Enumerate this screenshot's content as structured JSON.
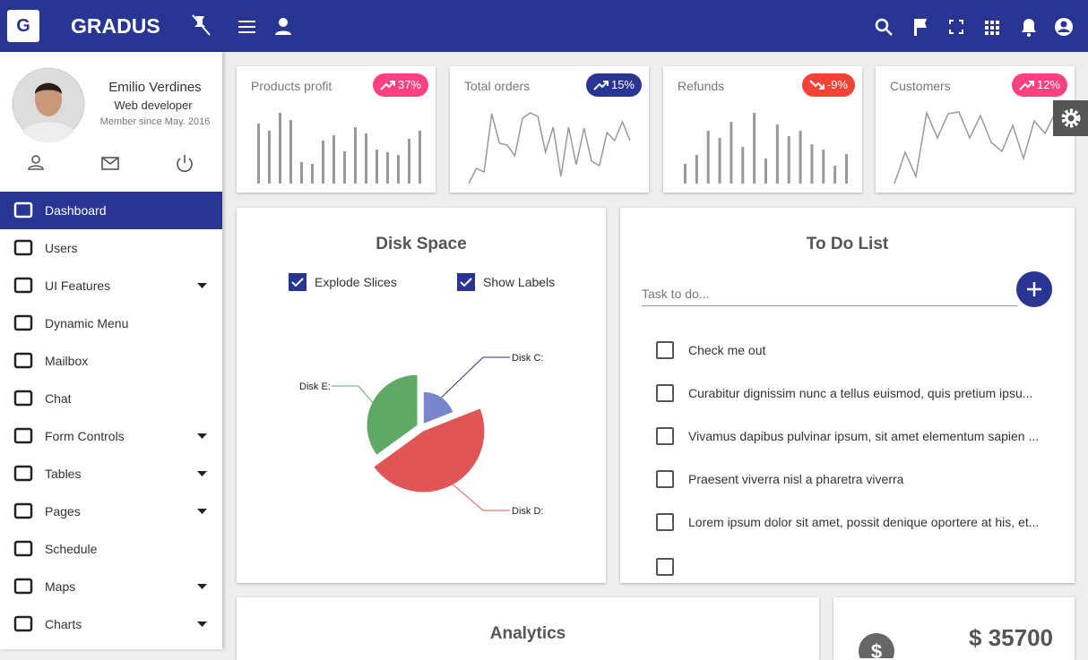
{
  "header": {
    "logo": "G",
    "brand": "GRADUS"
  },
  "profile": {
    "name": "Emilio Verdines",
    "role": "Web developer",
    "member_since": "Member since May. 2016"
  },
  "nav": [
    {
      "label": "Dashboard",
      "active": true
    },
    {
      "label": "Users"
    },
    {
      "label": "UI Features",
      "submenu": true
    },
    {
      "label": "Dynamic Menu"
    },
    {
      "label": "Mailbox"
    },
    {
      "label": "Chat"
    },
    {
      "label": "Form Controls",
      "submenu": true
    },
    {
      "label": "Tables",
      "submenu": true
    },
    {
      "label": "Pages",
      "submenu": true
    },
    {
      "label": "Schedule"
    },
    {
      "label": "Maps",
      "submenu": true
    },
    {
      "label": "Charts",
      "submenu": true
    }
  ],
  "stats": [
    {
      "title": "Products profit",
      "badge": "37%",
      "trend": "up",
      "color": "#ff4081",
      "chart": {
        "type": "bar",
        "values": [
          67,
          59,
          79,
          71,
          24,
          22,
          48,
          54,
          36,
          63,
          56,
          38,
          35,
          32,
          50,
          59
        ],
        "ylim": [
          0,
          80
        ]
      }
    },
    {
      "title": "Total orders",
      "badge": "15%",
      "trend": "up",
      "color": "#283593",
      "chart": {
        "type": "line",
        "values": [
          0,
          17,
          13,
          78,
          45,
          43,
          31,
          73,
          79,
          75,
          35,
          63,
          8,
          63,
          21,
          62,
          25,
          20,
          57,
          48,
          69,
          48
        ],
        "ylim": [
          0,
          80
        ]
      }
    },
    {
      "title": "Refunds",
      "badge": "-9%",
      "trend": "down",
      "color": "#f44336",
      "chart": {
        "type": "bar",
        "values": [
          22,
          32,
          59,
          51,
          69,
          41,
          79,
          28,
          66,
          53,
          59,
          44,
          38,
          20,
          33
        ],
        "ylim": [
          0,
          80
        ]
      }
    },
    {
      "title": "Customers",
      "badge": "12%",
      "trend": "up",
      "color": "#ff4081",
      "chart": {
        "type": "line",
        "values": [
          0,
          35,
          8,
          79,
          51,
          78,
          80,
          51,
          76,
          46,
          36,
          65,
          28,
          70,
          56,
          80
        ],
        "ylim": [
          0,
          80
        ]
      }
    }
  ],
  "disk_space": {
    "title": "Disk Space",
    "options": [
      {
        "label": "Explode Slices",
        "checked": true
      },
      {
        "label": "Show Labels",
        "checked": true
      }
    ],
    "chart_data": {
      "type": "pie",
      "categories": [
        "Disk C:",
        "Disk D:",
        "Disk E:"
      ],
      "values": [
        19,
        46,
        35
      ],
      "colors": [
        "#7986cb",
        "#e05555",
        "#5fa865"
      ]
    }
  },
  "todo": {
    "title": "To Do List",
    "placeholder": "Task to do...",
    "items": [
      "Check me out",
      "Curabitur dignissim nunc a tellus euismod, quis pretium ipsu...",
      "Vivamus dapibus pulvinar ipsum, sit amet elementum sapien ...",
      "Praesent viverra nisl a pharetra viverra",
      "Lorem ipsum dolor sit amet, possit denique oportere at his, et..."
    ]
  },
  "analytics": {
    "title": "Analytics"
  },
  "revenue": {
    "value": "$ 35700"
  }
}
